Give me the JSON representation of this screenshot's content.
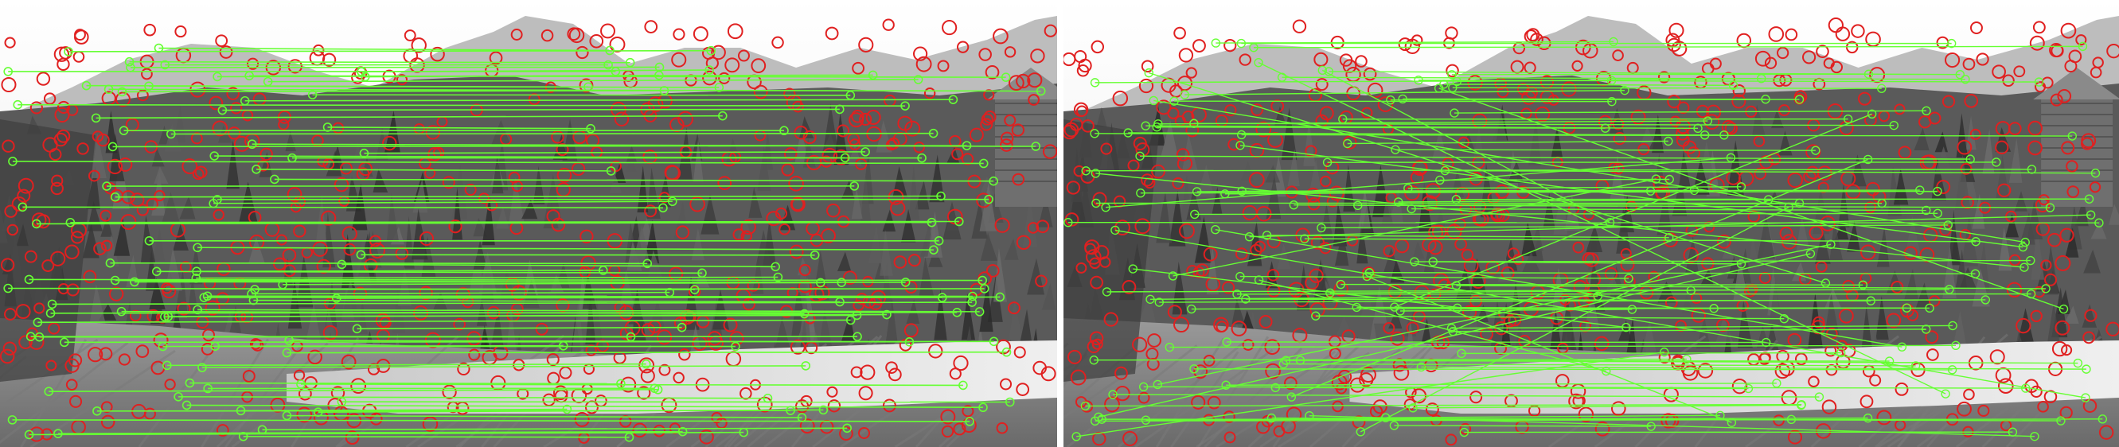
{
  "figure": {
    "panels": [
      {
        "id": "left",
        "label": "",
        "feature_color": "#e02020",
        "match_color": "#66ff33"
      },
      {
        "id": "right",
        "label": "",
        "feature_color": "#e02020",
        "match_color": "#66ff33"
      }
    ],
    "colors": {
      "sky": "#f6f6f6",
      "mountain_far": "#bdbdbd",
      "forest_dark": "#3d3d3d",
      "forest_mid": "#5a5a5a",
      "meadow": "#8c8c8c",
      "river": "#d8d8d8",
      "house": "#6f6f6f",
      "separator": "#ffffff"
    }
  }
}
